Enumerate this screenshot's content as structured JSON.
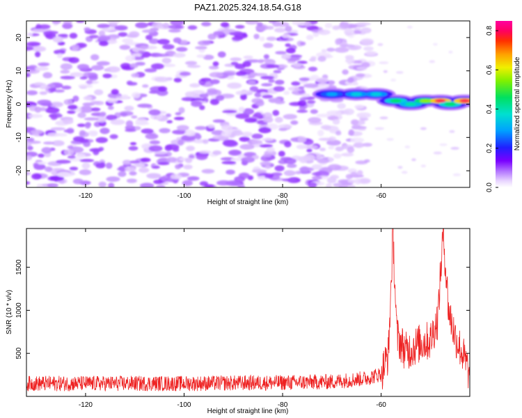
{
  "title": "PAZ1.2025.324.18.54.G18",
  "chart_data": [
    {
      "type": "heatmap",
      "title": "PAZ1.2025.324.18.54.G18",
      "xlabel": "Height of straight line (km)",
      "ylabel": "Frequency (Hz)",
      "xlim": [
        -132,
        -42
      ],
      "ylim": [
        -25,
        25
      ],
      "xticks": [
        -120,
        -100,
        -80,
        -60
      ],
      "yticks": [
        -20,
        -10,
        0,
        10,
        20
      ],
      "colorbar": {
        "label": "Normalized spectral amplitude",
        "range": [
          0,
          0.85
        ],
        "ticks": [
          0.0,
          0.2,
          0.4,
          0.6,
          0.8
        ],
        "tick_labels": [
          "0.0",
          "0.2",
          "0.4",
          "0.6",
          "0.8"
        ]
      },
      "description_of_field": {
        "noise_region_x": [
          -132,
          -68
        ],
        "noise_amplitude_range": [
          0.02,
          0.12
        ],
        "signal_band": [
          {
            "x": -70,
            "freq": 3,
            "amp": 0.3
          },
          {
            "x": -65,
            "freq": 3,
            "amp": 0.35
          },
          {
            "x": -61,
            "freq": 3,
            "amp": 0.35
          },
          {
            "x": -57,
            "freq": 1,
            "amp": 0.45
          },
          {
            "x": -54,
            "freq": 0,
            "amp": 0.4
          },
          {
            "x": -51,
            "freq": 1,
            "amp": 0.55
          },
          {
            "x": -48,
            "freq": 1,
            "amp": 0.8
          },
          {
            "x": -46,
            "freq": 0,
            "amp": 0.45
          },
          {
            "x": -43,
            "freq": 1,
            "amp": 0.8
          }
        ]
      }
    },
    {
      "type": "line",
      "xlabel": "Height of straight line (km)",
      "ylabel": "SNR (10 * v/v)",
      "xlim": [
        -132,
        -42
      ],
      "ylim": [
        0,
        1950
      ],
      "xticks": [
        -120,
        -100,
        -80,
        -60
      ],
      "yticks": [
        500,
        1000,
        1500
      ],
      "series": [
        {
          "name": "SNR",
          "color": "#ee2222",
          "baseline_points": [
            {
              "x": -132,
              "y": 150
            },
            {
              "x": -120,
              "y": 150
            },
            {
              "x": -100,
              "y": 150
            },
            {
              "x": -80,
              "y": 160
            },
            {
              "x": -70,
              "y": 170
            },
            {
              "x": -63,
              "y": 210
            },
            {
              "x": -60,
              "y": 260
            },
            {
              "x": -58.5,
              "y": 500
            },
            {
              "x": -57.6,
              "y": 1900
            },
            {
              "x": -56.8,
              "y": 700
            },
            {
              "x": -55,
              "y": 520
            },
            {
              "x": -52,
              "y": 620
            },
            {
              "x": -50,
              "y": 650
            },
            {
              "x": -48.5,
              "y": 900
            },
            {
              "x": -47.4,
              "y": 1920
            },
            {
              "x": -46.3,
              "y": 1000
            },
            {
              "x": -45,
              "y": 700
            },
            {
              "x": -43.5,
              "y": 500
            },
            {
              "x": -42,
              "y": 250
            }
          ],
          "noise_amplitude": 90
        }
      ]
    }
  ]
}
